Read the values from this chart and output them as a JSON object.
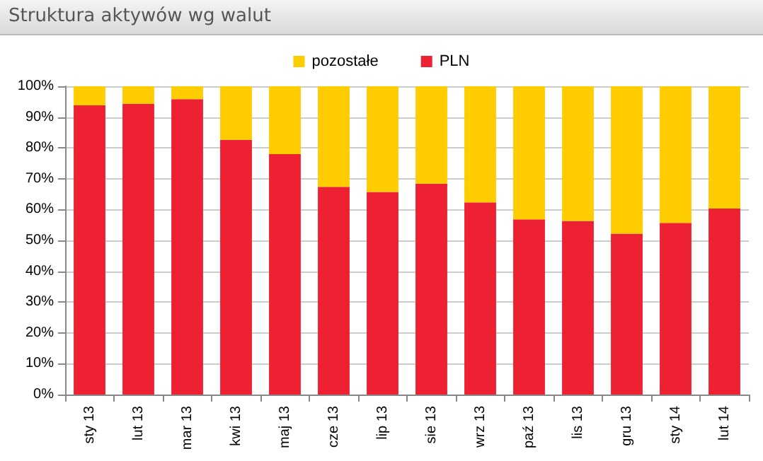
{
  "chart_data": {
    "type": "bar",
    "title": "Struktura aktywów wg walut",
    "stacked": true,
    "categories": [
      "sty 13",
      "lut 13",
      "mar 13",
      "kwi 13",
      "maj 13",
      "cze 13",
      "lip 13",
      "sie 13",
      "wrz 13",
      "paź 13",
      "lis 13",
      "gru 13",
      "sty 14",
      "lut 14"
    ],
    "series": [
      {
        "name": "PLN",
        "color": "#ed2132",
        "values": [
          93.8,
          94.3,
          95.8,
          82.6,
          78.0,
          67.4,
          65.7,
          68.4,
          62.3,
          56.8,
          56.3,
          52.2,
          55.7,
          60.3
        ]
      },
      {
        "name": "pozostałe",
        "color": "#ffcc00",
        "values": [
          6.2,
          5.7,
          4.2,
          17.4,
          22.0,
          32.6,
          34.3,
          31.6,
          37.7,
          43.2,
          43.7,
          47.8,
          44.3,
          39.7
        ]
      }
    ],
    "ylim": [
      0,
      100
    ],
    "yticks": [
      {
        "value": 0,
        "label": "0%"
      },
      {
        "value": 10,
        "label": "10%"
      },
      {
        "value": 20,
        "label": "20%"
      },
      {
        "value": 30,
        "label": "30%"
      },
      {
        "value": 40,
        "label": "40%"
      },
      {
        "value": 50,
        "label": "50%"
      },
      {
        "value": 60,
        "label": "60%"
      },
      {
        "value": 70,
        "label": "70%"
      },
      {
        "value": 80,
        "label": "80%"
      },
      {
        "value": 90,
        "label": "90%"
      },
      {
        "value": 100,
        "label": "100%"
      }
    ],
    "grid": "y",
    "legend": "top"
  }
}
